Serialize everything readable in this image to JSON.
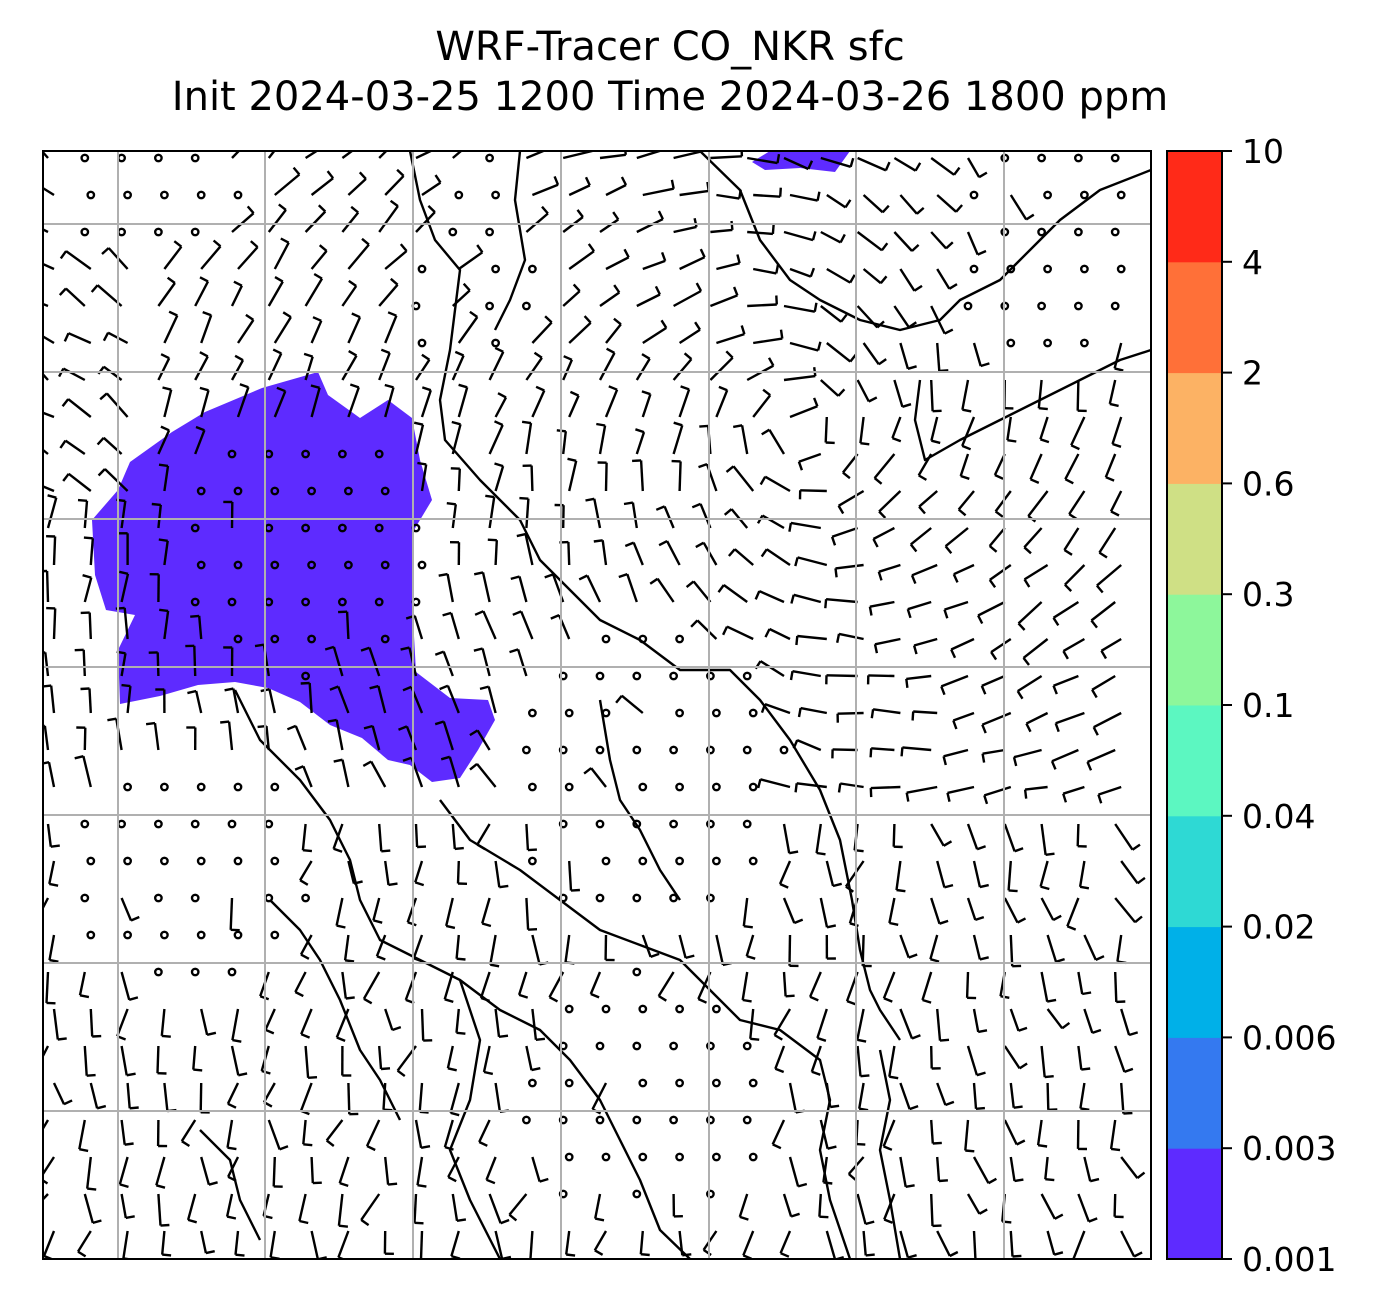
{
  "title": {
    "line1": "WRF-Tracer CO_NKR sfc",
    "line2": "Init 2024-03-25 1200 Time 2024-03-26 1800 ppm"
  },
  "colorbar": {
    "levels": [
      "0.001",
      "0.003",
      "0.006",
      "0.02",
      "0.04",
      "0.1",
      "0.3",
      "0.6",
      "2",
      "4",
      "10"
    ],
    "colors": [
      "#5e2bff",
      "#3479f0",
      "#00b0e8",
      "#2ed9d4",
      "#5cf7c1",
      "#8df79b",
      "#cfe085",
      "#fcb264",
      "#ff7038",
      "#ff2a18"
    ]
  },
  "colors": {
    "tracer_fill": "#5e2bff",
    "gridline": "#b0b0b0",
    "coastline": "#000000",
    "barb": "#000000"
  },
  "wind_barbs": {
    "regime": "cyclonic flow over the central and eastern domain, calm circles over land-dominant west and south"
  }
}
